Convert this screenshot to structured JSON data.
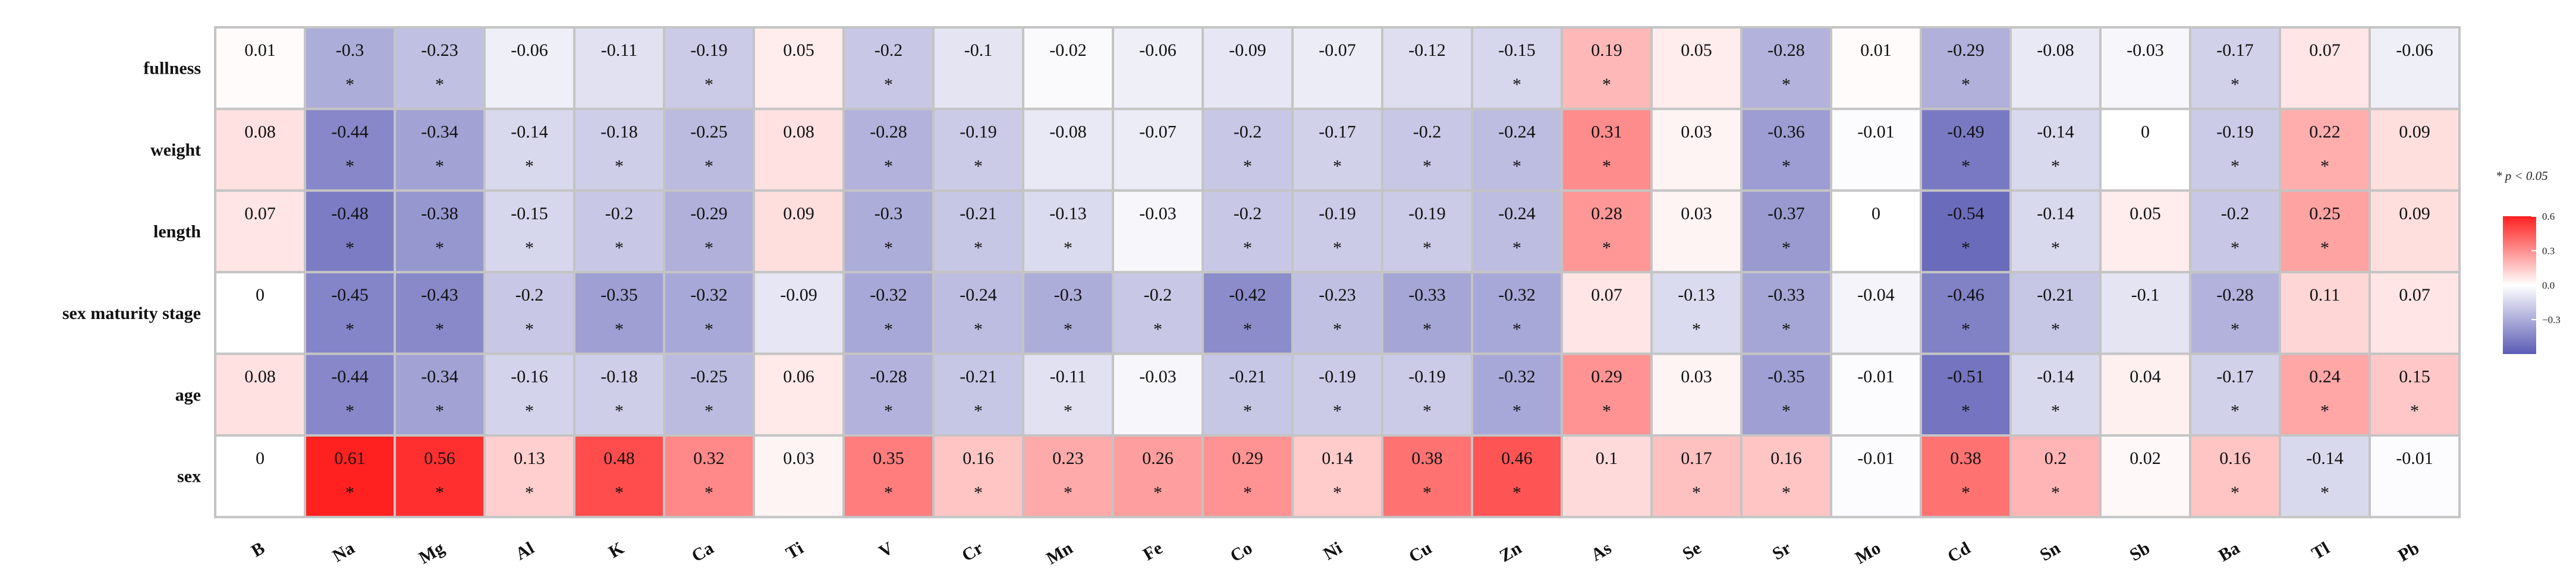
{
  "chart_data": {
    "type": "heatmap",
    "title": "",
    "columns": [
      "B",
      "Na",
      "Mg",
      "Al",
      "K",
      "Ca",
      "Ti",
      "V",
      "Cr",
      "Mn",
      "Fe",
      "Co",
      "Ni",
      "Cu",
      "Zn",
      "As",
      "Se",
      "Sr",
      "Mo",
      "Cd",
      "Sn",
      "Sb",
      "Ba",
      "Tl",
      "Pb"
    ],
    "rows": [
      "fullness",
      "weight",
      "length",
      "sex maturity stage",
      "age",
      "sex"
    ],
    "values": [
      [
        0.01,
        -0.3,
        -0.23,
        -0.06,
        -0.11,
        -0.19,
        0.05,
        -0.2,
        -0.1,
        -0.02,
        -0.06,
        -0.09,
        -0.07,
        -0.12,
        -0.15,
        0.19,
        0.05,
        -0.28,
        0.01,
        -0.29,
        -0.08,
        -0.03,
        -0.17,
        0.07,
        -0.06
      ],
      [
        0.08,
        -0.44,
        -0.34,
        -0.14,
        -0.18,
        -0.25,
        0.08,
        -0.28,
        -0.19,
        -0.08,
        -0.07,
        -0.2,
        -0.17,
        -0.2,
        -0.24,
        0.31,
        0.03,
        -0.36,
        -0.01,
        -0.49,
        -0.14,
        0,
        -0.19,
        0.22,
        0.09
      ],
      [
        0.07,
        -0.48,
        -0.38,
        -0.15,
        -0.2,
        -0.29,
        0.09,
        -0.3,
        -0.21,
        -0.13,
        -0.03,
        -0.2,
        -0.19,
        -0.19,
        -0.24,
        0.28,
        0.03,
        -0.37,
        0,
        -0.54,
        -0.14,
        0.05,
        -0.2,
        0.25,
        0.09
      ],
      [
        0,
        -0.45,
        -0.43,
        -0.2,
        -0.35,
        -0.32,
        -0.09,
        -0.32,
        -0.24,
        -0.3,
        -0.2,
        -0.42,
        -0.23,
        -0.33,
        -0.32,
        0.07,
        -0.13,
        -0.33,
        -0.04,
        -0.46,
        -0.21,
        -0.1,
        -0.28,
        0.11,
        0.07
      ],
      [
        0.08,
        -0.44,
        -0.34,
        -0.16,
        -0.18,
        -0.25,
        0.06,
        -0.28,
        -0.21,
        -0.11,
        -0.03,
        -0.21,
        -0.19,
        -0.19,
        -0.32,
        0.29,
        0.03,
        -0.35,
        -0.01,
        -0.51,
        -0.14,
        0.04,
        -0.17,
        0.24,
        0.15
      ],
      [
        0,
        0.61,
        0.56,
        0.13,
        0.48,
        0.32,
        0.03,
        0.35,
        0.16,
        0.23,
        0.26,
        0.29,
        0.14,
        0.38,
        0.46,
        0.1,
        0.17,
        0.16,
        -0.01,
        0.38,
        0.2,
        0.02,
        0.16,
        -0.14,
        -0.01
      ]
    ],
    "significant": [
      [
        0,
        1,
        1,
        0,
        0,
        1,
        0,
        1,
        0,
        0,
        0,
        0,
        0,
        0,
        1,
        1,
        0,
        1,
        0,
        1,
        0,
        0,
        1,
        0,
        0
      ],
      [
        0,
        1,
        1,
        1,
        1,
        1,
        0,
        1,
        1,
        0,
        0,
        1,
        1,
        1,
        1,
        1,
        0,
        1,
        0,
        1,
        1,
        0,
        1,
        1,
        0
      ],
      [
        0,
        1,
        1,
        1,
        1,
        1,
        0,
        1,
        1,
        1,
        0,
        1,
        1,
        1,
        1,
        1,
        0,
        1,
        0,
        1,
        1,
        0,
        1,
        1,
        0
      ],
      [
        0,
        1,
        1,
        1,
        1,
        1,
        0,
        1,
        1,
        1,
        1,
        1,
        1,
        1,
        1,
        0,
        1,
        1,
        0,
        1,
        1,
        0,
        1,
        0,
        0
      ],
      [
        0,
        1,
        1,
        1,
        1,
        1,
        0,
        1,
        1,
        1,
        0,
        1,
        1,
        1,
        1,
        1,
        0,
        1,
        0,
        1,
        1,
        0,
        1,
        1,
        1
      ],
      [
        0,
        1,
        1,
        1,
        1,
        1,
        0,
        1,
        1,
        1,
        1,
        1,
        1,
        1,
        1,
        0,
        1,
        1,
        0,
        1,
        1,
        0,
        1,
        1,
        0
      ]
    ],
    "significance_marker": "*",
    "legend": {
      "title": "* p < 0.05",
      "ticks": [
        0.6,
        0.3,
        0.0,
        -0.3
      ],
      "tick_labels": [
        "0.6",
        "0.3",
        "0.0",
        "−0.3"
      ],
      "range": [
        -0.6,
        0.6
      ],
      "colors": {
        "negative": "#5b5bb5",
        "zero": "#ffffff",
        "positive": "#ff2020"
      }
    }
  }
}
